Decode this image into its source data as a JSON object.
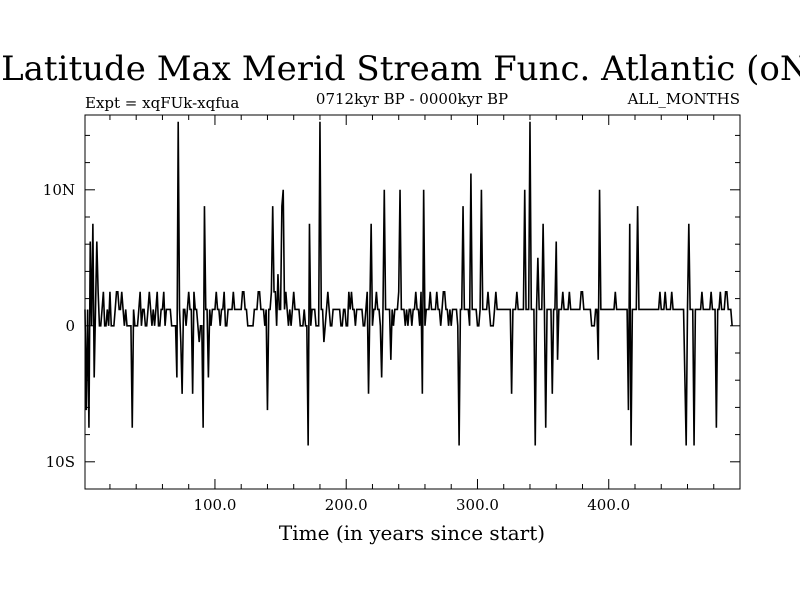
{
  "chart_data": {
    "type": "line",
    "title": "Latitude Max Merid Stream Func. Atlantic (oN)",
    "subtitle_left": "Expt = xqFUk-xqfua",
    "subtitle_center": "0712kyr BP - 0000kyr BP",
    "subtitle_right": "ALL_MONTHS",
    "xlabel": "Time (in years since start)",
    "ylabel": "",
    "xlim": [
      1,
      500
    ],
    "ylim": [
      -12,
      15.5
    ],
    "grid": false,
    "x_ticks": [
      {
        "value": 100,
        "label": "100.0"
      },
      {
        "value": 200,
        "label": "200.0"
      },
      {
        "value": 300,
        "label": "300.0"
      },
      {
        "value": 400,
        "label": "400.0"
      }
    ],
    "y_ticks": [
      {
        "value": 10,
        "label": "10N"
      },
      {
        "value": 0,
        "label": "0"
      },
      {
        "value": -10,
        "label": "10S"
      }
    ],
    "series": [
      {
        "color": "#000000",
        "x_start": 1,
        "x_step": 1,
        "values": [
          1.2,
          -6.2,
          1.2,
          -7.5,
          6.2,
          0,
          7.5,
          -3.8,
          1.2,
          6.2,
          2.5,
          0,
          0,
          1.2,
          2.5,
          0,
          0,
          1.2,
          0,
          2.5,
          0,
          0,
          0,
          1.2,
          2.5,
          2.5,
          1.2,
          1.2,
          2.5,
          1.2,
          0,
          1.2,
          0,
          0,
          0,
          0,
          -7.5,
          1.2,
          0,
          0,
          0,
          1.2,
          2.5,
          0,
          1.2,
          1.2,
          0,
          0,
          1.2,
          2.5,
          1.2,
          0,
          1.2,
          0,
          1.2,
          2.5,
          0,
          0,
          1.2,
          1.2,
          2.5,
          0,
          1.2,
          1.2,
          1.2,
          1.2,
          0,
          0,
          0,
          0,
          -3.8,
          15,
          1.2,
          -1.2,
          -5,
          1.2,
          1.2,
          0,
          1.2,
          2.5,
          1.2,
          1.2,
          -5,
          2.5,
          1.2,
          1.2,
          0,
          -1.2,
          0,
          0,
          -7.5,
          8.8,
          1.2,
          1.2,
          -3.8,
          1.2,
          0,
          1.2,
          1.2,
          1.2,
          2.5,
          1.2,
          1.2,
          0,
          1.2,
          1.2,
          2.5,
          0,
          0,
          1.2,
          1.2,
          1.2,
          1.2,
          2.5,
          1.2,
          1.2,
          1.2,
          1.2,
          1.2,
          1.2,
          2.5,
          2.5,
          1.2,
          1.2,
          0,
          0,
          0,
          0,
          0,
          1.2,
          1.2,
          1.2,
          2.5,
          2.5,
          1.2,
          1.2,
          1.2,
          0,
          1.2,
          -6.2,
          1.2,
          1.2,
          2.5,
          8.8,
          2.5,
          2.5,
          0,
          3.8,
          1.2,
          1.2,
          8.8,
          10,
          1.2,
          2.5,
          1.2,
          0,
          1.2,
          0,
          1.2,
          2.5,
          1.2,
          1.2,
          1.2,
          1.2,
          0,
          0,
          0,
          1.2,
          0,
          0,
          -8.8,
          7.5,
          0,
          1.2,
          1.2,
          1.2,
          0,
          0,
          0,
          15,
          1.2,
          1.2,
          -1.2,
          0,
          1.2,
          2.5,
          1.2,
          0,
          0,
          1.2,
          1.2,
          1.2,
          1.2,
          1.2,
          1.2,
          0,
          0,
          1.2,
          1.2,
          0,
          0,
          2.5,
          1.2,
          2.5,
          1.2,
          1.2,
          0,
          1.2,
          1.2,
          1.2,
          1.2,
          1.2,
          0,
          0,
          1.2,
          2.5,
          -5,
          1.2,
          7.5,
          0,
          1.2,
          1.2,
          2.5,
          1.2,
          1.2,
          0,
          -3.8,
          1.2,
          10,
          1.2,
          1.2,
          1.2,
          1.2,
          -2.5,
          1.2,
          0,
          1.2,
          1.2,
          1.2,
          2.5,
          10,
          1.2,
          1.2,
          1.2,
          0,
          1.2,
          0,
          1.2,
          1.2,
          0,
          1.2,
          1.2,
          2.5,
          1.2,
          1.2,
          0,
          2.5,
          -5,
          10,
          0,
          1.2,
          1.2,
          1.2,
          2.5,
          1.2,
          1.2,
          1.2,
          1.2,
          2.5,
          1.2,
          1.2,
          0,
          1.2,
          2.5,
          2.5,
          1.2,
          1.2,
          0,
          1.2,
          0,
          1.2,
          1.2,
          1.2,
          1.2,
          0,
          -8.8,
          1.2,
          1.2,
          8.8,
          1.2,
          1.2,
          1.2,
          1.2,
          0,
          11.2,
          1.2,
          1.2,
          1.2,
          1.2,
          0,
          0,
          1.2,
          10,
          1.2,
          1.2,
          1.2,
          1.2,
          2.5,
          1.2,
          0,
          0,
          0,
          1.2,
          2.5,
          1.2,
          1.2,
          1.2,
          1.2,
          1.2,
          1.2,
          1.2,
          1.2,
          1.2,
          1.2,
          1.2,
          -5,
          1.2,
          1.2,
          1.2,
          2.5,
          1.2,
          1.2,
          1.2,
          1.2,
          1.2,
          10,
          1.2,
          1.2,
          1.2,
          15,
          1.2,
          1.2,
          1.2,
          -8.8,
          1.2,
          5,
          1.2,
          1.2,
          1.2,
          7.5,
          1.2,
          -7.5,
          1.2,
          1.2,
          1.2,
          1.2,
          -5,
          1.2,
          1.2,
          6.2,
          -2.5,
          1.2,
          1.2,
          1.2,
          2.5,
          1.2,
          1.2,
          1.2,
          1.2,
          2.5,
          1.2,
          1.2,
          1.2,
          1.2,
          1.2,
          1.2,
          1.2,
          1.2,
          2.5,
          2.5,
          1.2,
          1.2,
          1.2,
          1.2,
          1.2,
          1.2,
          0,
          0,
          0,
          1.2,
          1.2,
          -2.5,
          10,
          1.2,
          1.2,
          1.2,
          1.2,
          1.2,
          1.2,
          1.2,
          1.2,
          1.2,
          1.2,
          1.2,
          2.5,
          1.2,
          1.2,
          1.2,
          1.2,
          1.2,
          1.2,
          1.2,
          1.2,
          1.2,
          -6.2,
          7.5,
          -8.8,
          1.2,
          1.2,
          1.2,
          1.2,
          8.8,
          1.2,
          1.2,
          1.2,
          1.2,
          1.2,
          1.2,
          1.2,
          1.2,
          1.2,
          1.2,
          1.2,
          1.2,
          1.2,
          1.2,
          1.2,
          1.2,
          2.5,
          1.2,
          1.2,
          1.2,
          2.5,
          1.2,
          1.2,
          1.2,
          1.2,
          2.5,
          1.2,
          1.2,
          1.2,
          1.2,
          1.2,
          1.2,
          1.2,
          1.2,
          1.2,
          -3.8,
          -8.8,
          1.2,
          7.5,
          1.2,
          1.2,
          1.2,
          -8.8,
          1.2,
          1.2,
          1.2,
          1.2,
          1.2,
          2.5,
          1.2,
          1.2,
          1.2,
          1.2,
          1.2,
          1.2,
          2.5,
          1.2,
          1.2,
          1.2,
          -7.5,
          1.2,
          1.2,
          2.5,
          1.2,
          1.2,
          1.2,
          2.5,
          2.5,
          1.2,
          1.2,
          1.2,
          0
        ]
      }
    ]
  }
}
